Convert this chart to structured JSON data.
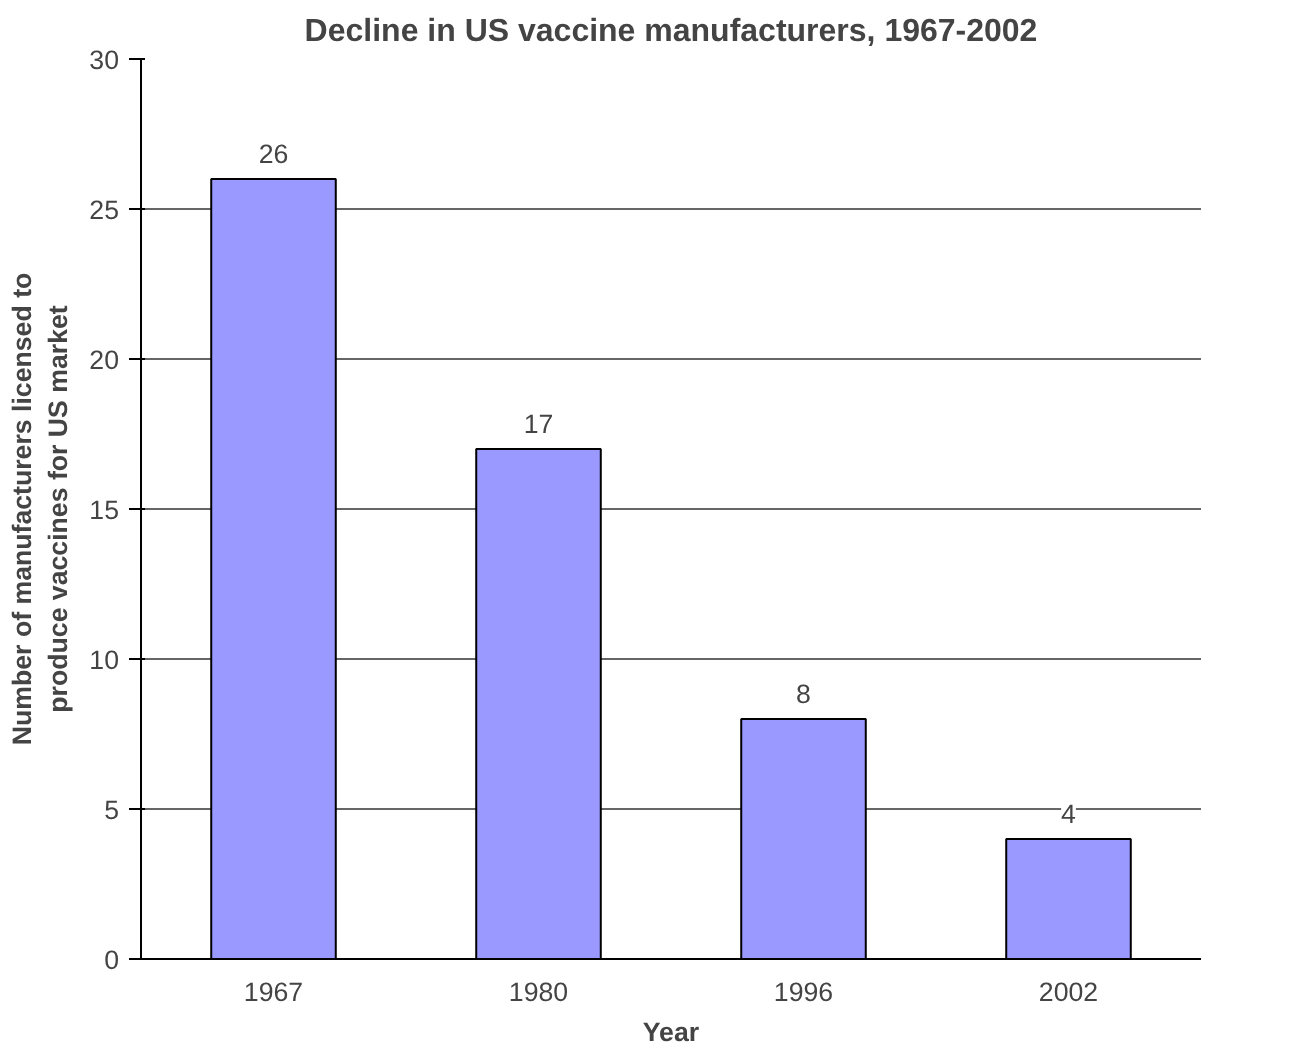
{
  "chart_data": {
    "type": "bar",
    "title": "Decline in US vaccine manufacturers, 1967-2002",
    "xlabel": "Year",
    "ylabel": "Number of manufacturers licensed to\nproduce vaccines for US market",
    "categories": [
      "1967",
      "1980",
      "1996",
      "2002"
    ],
    "values": [
      26,
      17,
      8,
      4
    ],
    "color": "#9999ff",
    "ylim": [
      0,
      30
    ],
    "yticks": [
      0,
      5,
      10,
      15,
      20,
      25,
      30
    ],
    "grid": "y",
    "data_labels": true
  }
}
